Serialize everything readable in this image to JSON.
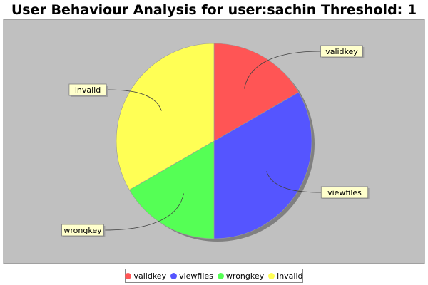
{
  "chart_data": {
    "type": "pie",
    "title": "User Behaviour Analysis for user:sachin Threshold: 1",
    "slices": [
      {
        "label": "validkey",
        "value": 1,
        "color": "#ff5555"
      },
      {
        "label": "viewfiles",
        "value": 2,
        "color": "#5555ff"
      },
      {
        "label": "wrongkey",
        "value": 1,
        "color": "#55ff55"
      },
      {
        "label": "invalid",
        "value": 2,
        "color": "#ffff55"
      }
    ],
    "plot_background": "#c0c0c0",
    "label_background": "#ffffcc",
    "legend": {
      "placement": "bottom",
      "entries": [
        "validkey",
        "viewfiles",
        "wrongkey",
        "invalid"
      ]
    }
  }
}
